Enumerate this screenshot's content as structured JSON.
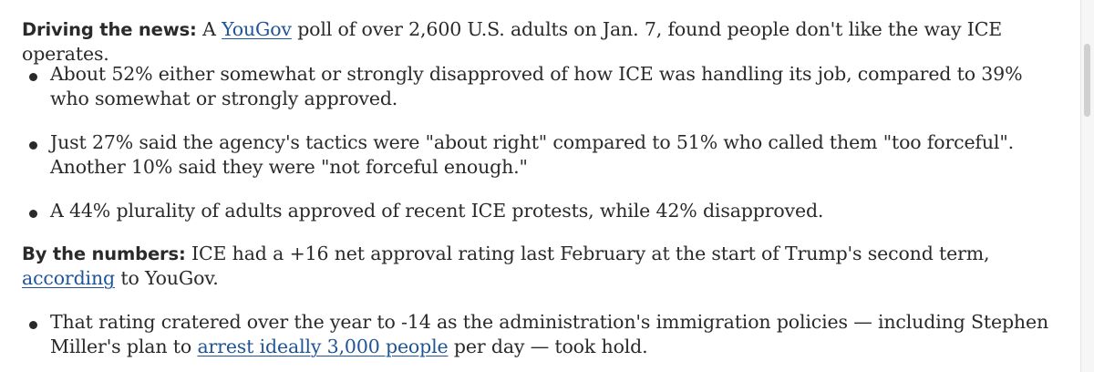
{
  "p1": {
    "lead": "Driving the news:",
    "text_before": "A",
    "link": "YouGov",
    "text_after": "poll of over 2,600 U.S. adults on Jan. 7, found people don't like the way ICE operates."
  },
  "bullets1": [
    "About 52% either somewhat or strongly disapproved of how ICE was handling its job, compared to 39% who somewhat or strongly approved.",
    "Just 27% said the agency's tactics were \"about right\" compared to 51% who called them \"too forceful\". Another 10% said they were \"not forceful enough.\"",
    "A 44% plurality of adults approved of recent ICE protests, while 42% disapproved."
  ],
  "p2": {
    "lead": "By the numbers:",
    "text_before": "ICE had a +16 net approval rating last February at the start of Trump's second term,",
    "link": "according",
    "text_after": "to YouGov."
  },
  "bullet2": {
    "text_before": "That rating cratered over the year to -14 as the administration's immigration policies — including Stephen Miller's plan to",
    "link": "arrest ideally 3,000 people",
    "text_after": "per day — took hold."
  }
}
